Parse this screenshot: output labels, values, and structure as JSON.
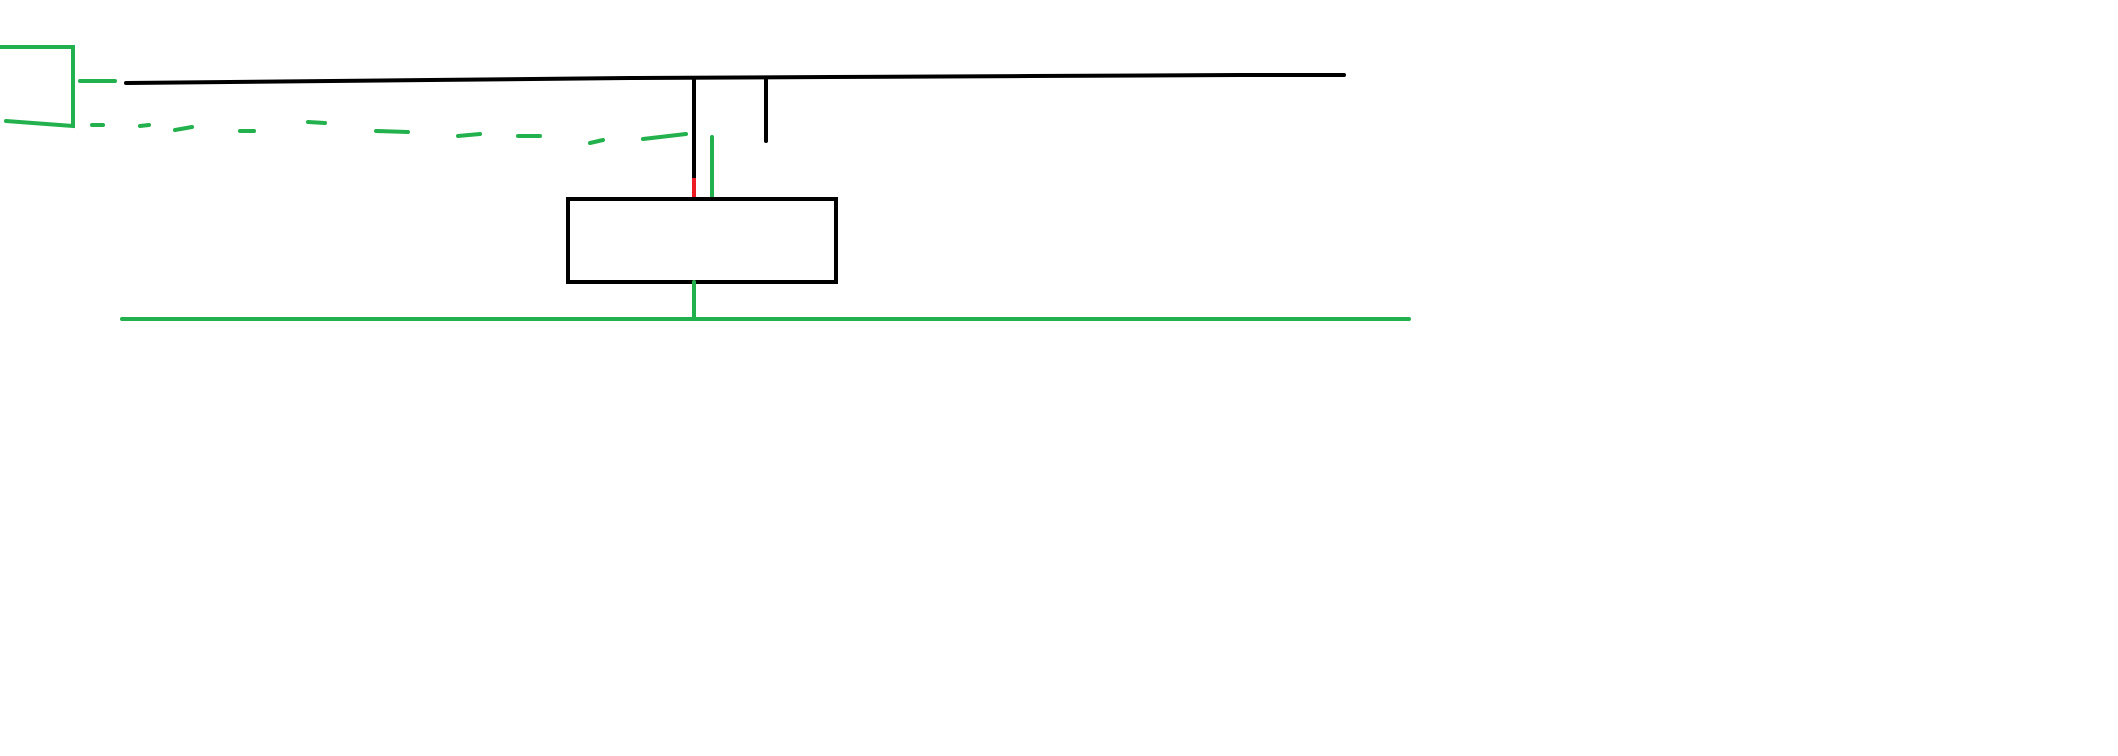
{
  "colors": {
    "background": "#ffffff",
    "black": "#000000",
    "green": "#22b14c",
    "red": "#ed1c24"
  },
  "diagram": {
    "description_elements": [
      "green-bracket",
      "green-dash-upper",
      "black-top-line",
      "green-dashed-line",
      "black-stem-left",
      "red-segment",
      "black-stem-right",
      "green-stem",
      "black-box",
      "green-box-stem",
      "green-bottom-line"
    ]
  }
}
